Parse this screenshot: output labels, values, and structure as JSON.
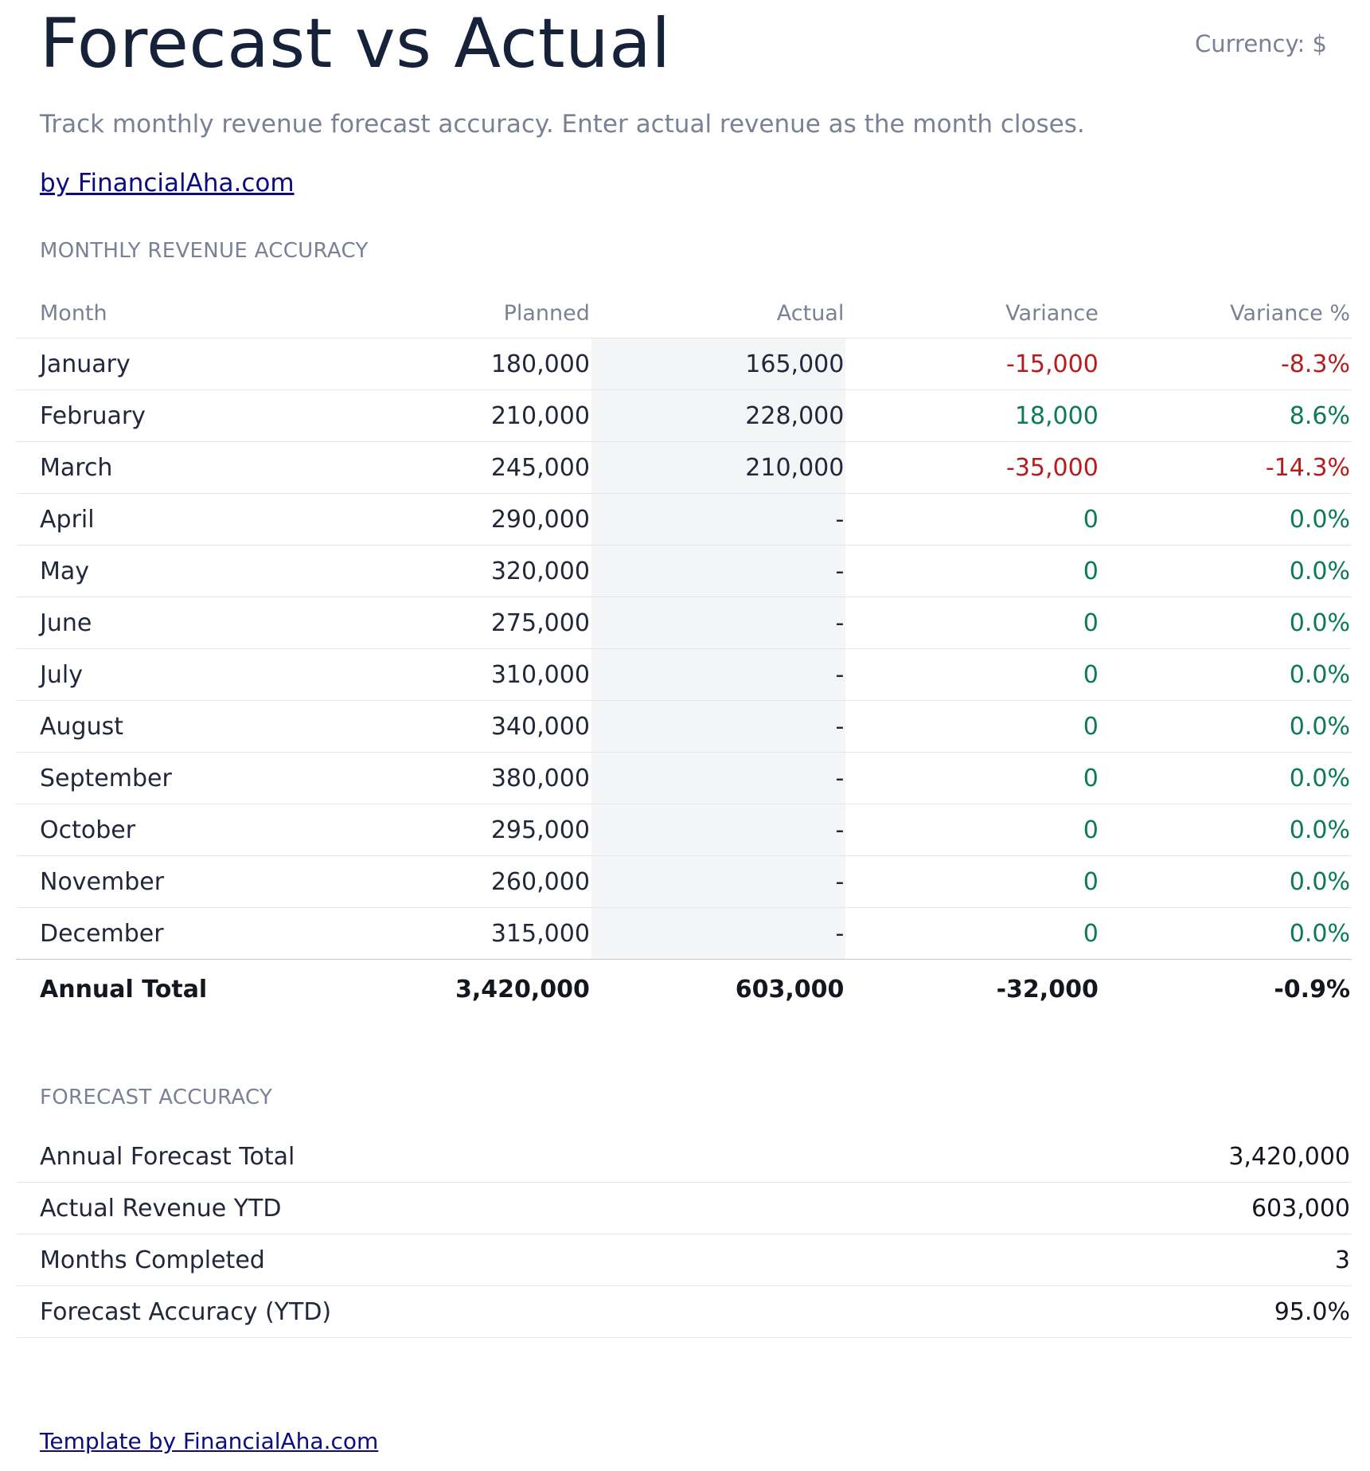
{
  "header": {
    "title": "Forecast vs Actual",
    "currency": "Currency: $",
    "subtitle": "Track monthly revenue forecast accuracy. Enter actual revenue as the month closes.",
    "byline": "by FinancialAha.com"
  },
  "monthly": {
    "section_label": "MONTHLY REVENUE ACCURACY",
    "columns": [
      "Month",
      "Planned",
      "Actual",
      "Variance",
      "Variance %"
    ],
    "rows": [
      {
        "month": "January",
        "planned": "180,000",
        "actual": "165,000",
        "variance": "-15,000",
        "variance_pct": "-8.3%",
        "status": "neg"
      },
      {
        "month": "February",
        "planned": "210,000",
        "actual": "228,000",
        "variance": "18,000",
        "variance_pct": "8.6%",
        "status": "pos"
      },
      {
        "month": "March",
        "planned": "245,000",
        "actual": "210,000",
        "variance": "-35,000",
        "variance_pct": "-14.3%",
        "status": "neg"
      },
      {
        "month": "April",
        "planned": "290,000",
        "actual": "-",
        "variance": "0",
        "variance_pct": "0.0%",
        "status": "pos"
      },
      {
        "month": "May",
        "planned": "320,000",
        "actual": "-",
        "variance": "0",
        "variance_pct": "0.0%",
        "status": "pos"
      },
      {
        "month": "June",
        "planned": "275,000",
        "actual": "-",
        "variance": "0",
        "variance_pct": "0.0%",
        "status": "pos"
      },
      {
        "month": "July",
        "planned": "310,000",
        "actual": "-",
        "variance": "0",
        "variance_pct": "0.0%",
        "status": "pos"
      },
      {
        "month": "August",
        "planned": "340,000",
        "actual": "-",
        "variance": "0",
        "variance_pct": "0.0%",
        "status": "pos"
      },
      {
        "month": "September",
        "planned": "380,000",
        "actual": "-",
        "variance": "0",
        "variance_pct": "0.0%",
        "status": "pos"
      },
      {
        "month": "October",
        "planned": "295,000",
        "actual": "-",
        "variance": "0",
        "variance_pct": "0.0%",
        "status": "pos"
      },
      {
        "month": "November",
        "planned": "260,000",
        "actual": "-",
        "variance": "0",
        "variance_pct": "0.0%",
        "status": "pos"
      },
      {
        "month": "December",
        "planned": "315,000",
        "actual": "-",
        "variance": "0",
        "variance_pct": "0.0%",
        "status": "pos"
      }
    ],
    "total": {
      "label": "Annual Total",
      "planned": "3,420,000",
      "actual": "603,000",
      "variance": "-32,000",
      "variance_pct": "-0.9%"
    }
  },
  "accuracy": {
    "section_label": "FORECAST ACCURACY",
    "rows": [
      {
        "label": "Annual Forecast Total",
        "value": "3,420,000"
      },
      {
        "label": "Actual Revenue YTD",
        "value": "603,000"
      },
      {
        "label": "Months Completed",
        "value": "3"
      },
      {
        "label": "Forecast Accuracy (YTD)",
        "value": "95.0%"
      }
    ]
  },
  "footer": {
    "link": "Template by FinancialAha.com"
  },
  "colors": {
    "negative": "#b71c1c",
    "positive": "#0b7a55",
    "link": "#0c0c80",
    "muted": "#7a8194",
    "actual_column_bg": "#f4f5f7"
  }
}
